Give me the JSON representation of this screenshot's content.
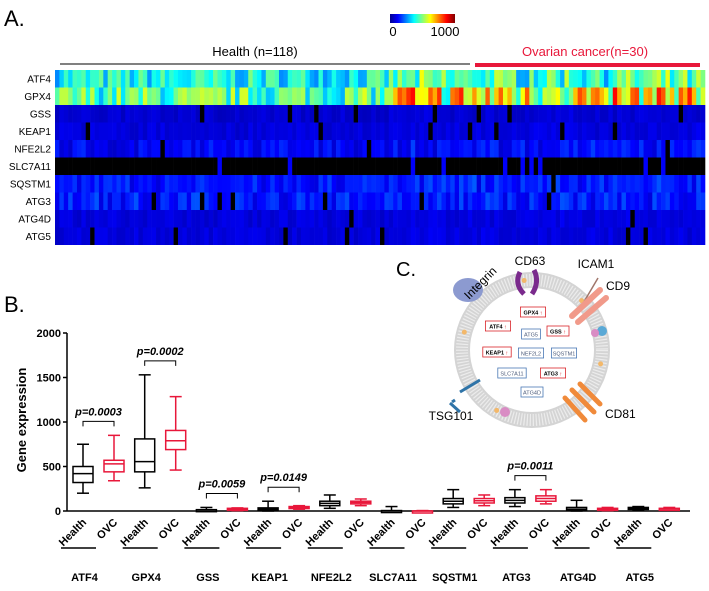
{
  "panels": {
    "a": "A.",
    "b": "B.",
    "c": "C."
  },
  "heatmap": {
    "colorbar": {
      "min_label": "0",
      "max_label": "1000",
      "range": [
        0,
        1000
      ],
      "colormap": "jet"
    },
    "groups": [
      {
        "label": "Health (n=118)",
        "n": 118,
        "color": "#000000"
      },
      {
        "label": "Ovarian cancer(n=30)",
        "n": 30,
        "color": "#e8173a"
      }
    ],
    "rows": [
      "ATF4",
      "GPX4",
      "GSS",
      "KEAP1",
      "NFE2L2",
      "SLC7A11",
      "SQSTM1",
      "ATG3",
      "ATG4D",
      "ATG5"
    ]
  },
  "chart_data": {
    "type": "box",
    "ylabel": "Gene expression",
    "ylim": [
      0,
      2000
    ],
    "yticks": [
      "0",
      "500",
      "1000",
      "1500",
      "2000"
    ],
    "group_labels": [
      "Health",
      "OVC"
    ],
    "group_colors": {
      "Health": "#000000",
      "OVC": "#e8173a"
    },
    "genes": [
      {
        "name": "ATF4",
        "Health": [
          200,
          320,
          420,
          500,
          750
        ],
        "OVC": [
          340,
          440,
          530,
          570,
          850
        ],
        "p": "p=0.0003"
      },
      {
        "name": "GPX4",
        "Health": [
          260,
          440,
          555,
          810,
          1530
        ],
        "OVC": [
          460,
          690,
          790,
          905,
          1285
        ],
        "p": "p=0.0002"
      },
      {
        "name": "GSS",
        "Health": [
          0,
          5,
          10,
          15,
          40
        ],
        "OVC": [
          5,
          10,
          20,
          30,
          35
        ],
        "p": "p=0.0059"
      },
      {
        "name": "KEAP1",
        "Health": [
          0,
          10,
          20,
          35,
          110
        ],
        "OVC": [
          20,
          30,
          40,
          50,
          60
        ],
        "p": "p=0.0149"
      },
      {
        "name": "NFE2L2",
        "Health": [
          30,
          60,
          85,
          110,
          180
        ],
        "OVC": [
          60,
          80,
          95,
          110,
          135
        ],
        "p": ""
      },
      {
        "name": "SLC7A11",
        "Health": [
          0,
          0,
          0,
          5,
          50
        ],
        "OVC": [
          0,
          0,
          0,
          0,
          5
        ],
        "p": ""
      },
      {
        "name": "SQSTM1",
        "Health": [
          40,
          80,
          110,
          140,
          240
        ],
        "OVC": [
          60,
          90,
          115,
          140,
          180
        ],
        "p": ""
      },
      {
        "name": "ATG3",
        "Health": [
          50,
          90,
          120,
          150,
          240
        ],
        "OVC": [
          80,
          110,
          140,
          170,
          240
        ],
        "p": "p=0.0011"
      },
      {
        "name": "ATG4D",
        "Health": [
          0,
          10,
          20,
          40,
          120
        ],
        "OVC": [
          5,
          10,
          20,
          30,
          40
        ],
        "p": ""
      },
      {
        "name": "ATG5",
        "Health": [
          10,
          20,
          30,
          40,
          50
        ],
        "OVC": [
          10,
          15,
          25,
          30,
          40
        ],
        "p": ""
      }
    ]
  },
  "diagram": {
    "proteins": [
      "Integrin",
      "CD63",
      "ICAM1",
      "CD9",
      "TSG101",
      "CD81"
    ],
    "genes": [
      {
        "label": "GPX4",
        "up": true
      },
      {
        "label": "ATF4",
        "up": true
      },
      {
        "label": "ATG5",
        "up": false
      },
      {
        "label": "GSS",
        "up": true
      },
      {
        "label": "KEAP1",
        "up": true
      },
      {
        "label": "NEF2L2",
        "up": false
      },
      {
        "label": "SQSTM1",
        "up": false
      },
      {
        "label": "SLC7A11",
        "up": false
      },
      {
        "label": "ATG3",
        "up": true
      },
      {
        "label": "ATG4D",
        "up": false
      }
    ],
    "up_arrow": "↑",
    "up_color": "#d9252a",
    "neutral_color": "#4a78b5"
  }
}
